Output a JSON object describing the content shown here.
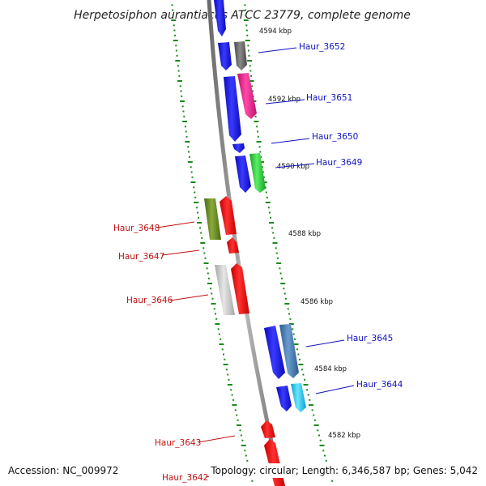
{
  "title": "Herpetosiphon aurantiacus ATCC 23779, complete genome",
  "footer": {
    "accession": "Accession: NC_009972",
    "summary": "Topology: circular; Length: 6,346,587 bp; Genes: 5,042"
  },
  "kbp_labels": [
    "4594 kbp",
    "4592 kbp",
    "4590 kbp",
    "4588 kbp",
    "4586 kbp",
    "4584 kbp",
    "4582 kbp"
  ],
  "genes": [
    {
      "name": "Haur_3652",
      "strand": "forward",
      "color": "#6a6a6a"
    },
    {
      "name": "Haur_3651",
      "strand": "forward",
      "color": "#e8208c"
    },
    {
      "name": "Haur_3650",
      "strand": "forward",
      "color": "#1a1aee"
    },
    {
      "name": "Haur_3649",
      "strand": "forward",
      "color": "#2ec83a"
    },
    {
      "name": "Haur_3648",
      "strand": "reverse",
      "color": "#6b8e23"
    },
    {
      "name": "Haur_3647",
      "strand": "reverse",
      "color": "#ee1111"
    },
    {
      "name": "Haur_3646",
      "strand": "reverse",
      "color": "#c4c4c4"
    },
    {
      "name": "Haur_3645",
      "strand": "forward",
      "color": "#4a7fb4"
    },
    {
      "name": "Haur_3644",
      "strand": "forward",
      "color": "#22c8ee"
    },
    {
      "name": "Haur_3643",
      "strand": "reverse",
      "color": "#ee1111"
    },
    {
      "name": "Haur_3642",
      "strand": "reverse",
      "color": "#ee1111"
    }
  ],
  "colors": {
    "backbone": "#8c8c8c",
    "tick": "#1a8a1a",
    "forward_strand": "#1a1aee",
    "reverse_strand": "#ee1111",
    "forward_label": "#1010c0",
    "reverse_label": "#c01010"
  }
}
